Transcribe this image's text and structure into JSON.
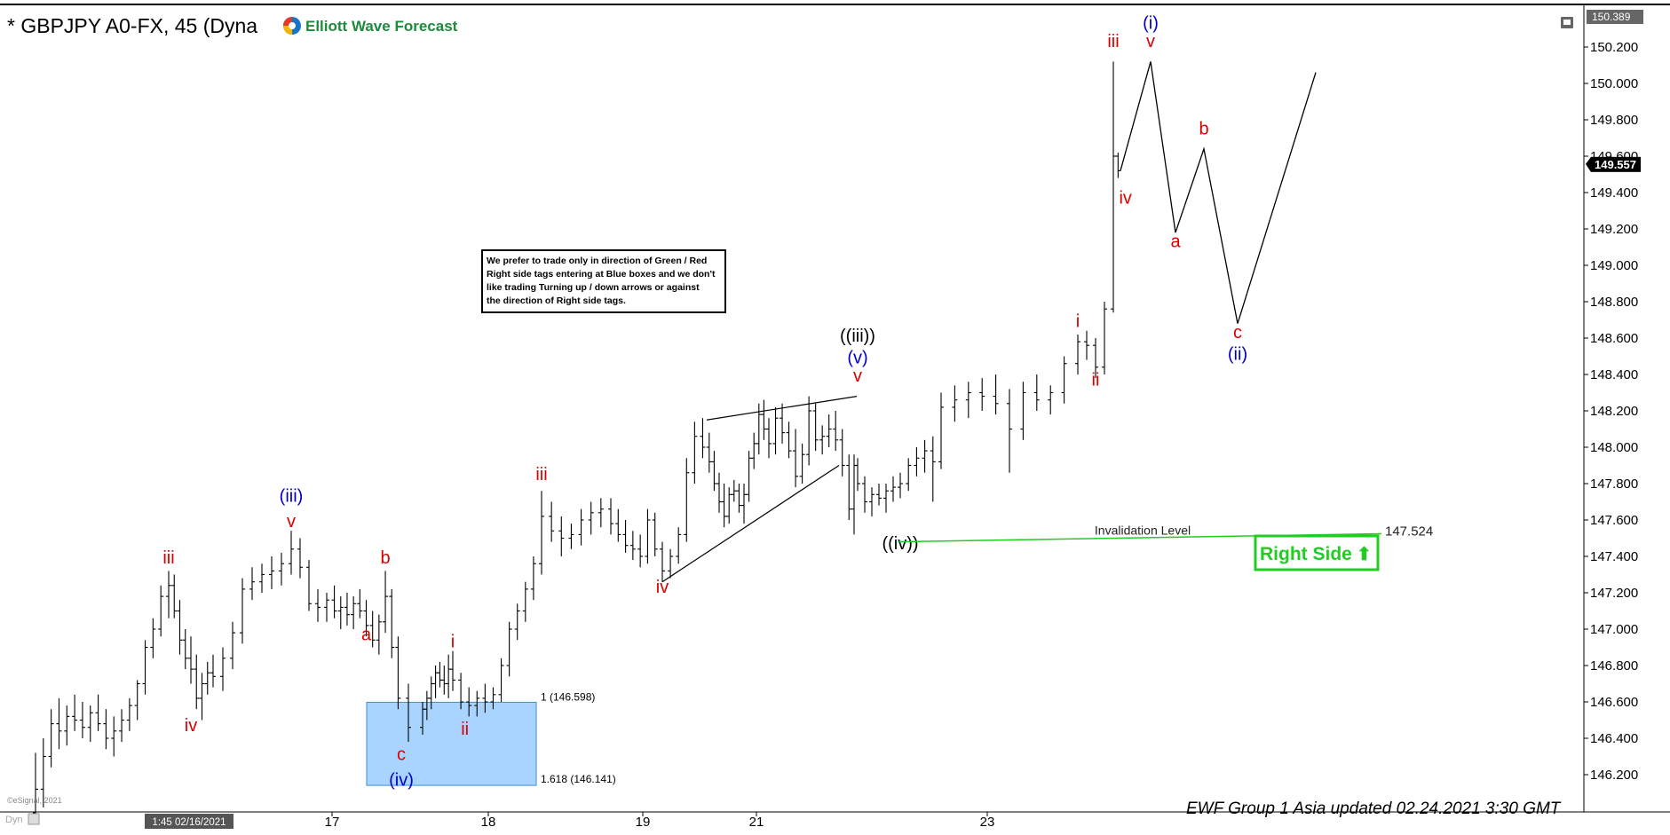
{
  "header": {
    "title": "* GBPJPY A0-FX, 45 (Dyna",
    "brand_name": "Elliott Wave Forecast"
  },
  "footer": {
    "updated": "EWF Group 1 Asia updated 02.24.2021 3:30 GMT",
    "copyright": "©eSignal, 2021",
    "cursor_time": "1:45 02/16/2021",
    "corner_label": "Dyn"
  },
  "note_box": {
    "lines": [
      "We prefer to trade only in direction of Green / Red",
      "Right side tags entering at Blue boxes and we don't",
      "like trading Turning up / down arrows or against",
      "the direction of Right side tags."
    ]
  },
  "right_side_tag": {
    "label": "Right Side",
    "arrow": "⬆",
    "color": "#22cc22"
  },
  "chart_data": {
    "type": "ohlc",
    "symbol": "GBPJPY",
    "timeframe": "45",
    "ylim": [
      146.0,
      150.4
    ],
    "y_ticks": [
      "146.200",
      "146.400",
      "146.600",
      "146.800",
      "147.000",
      "147.200",
      "147.400",
      "147.600",
      "147.800",
      "148.000",
      "148.200",
      "148.400",
      "148.600",
      "148.800",
      "149.000",
      "149.200",
      "149.400",
      "149.600",
      "149.800",
      "150.000",
      "150.200"
    ],
    "y_top_label": "150.389",
    "last_price": "149.557",
    "x_ticks": [
      "17",
      "18",
      "19",
      "21",
      "23"
    ],
    "colors": {
      "bars": "#000000",
      "blue_box": "#a8d4ff",
      "invalidation": "#22cc22",
      "red_label": "#dd0000",
      "blue_label": "#0000cc"
    },
    "blue_box": {
      "x_start": 17.4,
      "x_end": 18.2,
      "top": 146.598,
      "bottom": 146.141,
      "label_top": "1 (146.598)",
      "label_bottom": "1.618 (146.141)"
    },
    "invalidation": {
      "label": "Invalidation Level",
      "value": "147.524",
      "x_start": 21.8,
      "x_end": 25.0,
      "y": 147.5
    },
    "bars": [
      [
        16.0,
        145.99,
        146.32,
        145.94,
        146.12
      ],
      [
        16.04,
        146.12,
        146.4,
        146.02,
        146.3
      ],
      [
        16.08,
        146.3,
        146.56,
        146.24,
        146.48
      ],
      [
        16.12,
        146.48,
        146.62,
        146.34,
        146.44
      ],
      [
        16.16,
        146.44,
        146.58,
        146.36,
        146.52
      ],
      [
        16.2,
        146.52,
        146.64,
        146.44,
        146.5
      ],
      [
        16.24,
        146.5,
        146.6,
        146.4,
        146.46
      ],
      [
        16.28,
        146.46,
        146.58,
        146.38,
        146.54
      ],
      [
        16.32,
        146.54,
        146.64,
        146.44,
        146.48
      ],
      [
        16.36,
        146.48,
        146.56,
        146.34,
        146.4
      ],
      [
        16.4,
        146.4,
        146.52,
        146.3,
        146.44
      ],
      [
        16.44,
        146.44,
        146.56,
        146.38,
        146.5
      ],
      [
        16.48,
        146.5,
        146.62,
        146.44,
        146.58
      ],
      [
        16.52,
        146.58,
        146.72,
        146.5,
        146.7
      ],
      [
        16.56,
        146.7,
        146.94,
        146.64,
        146.9
      ],
      [
        16.6,
        146.9,
        147.06,
        146.84,
        147.0
      ],
      [
        16.64,
        147.0,
        147.24,
        146.96,
        147.18
      ],
      [
        16.68,
        147.18,
        147.32,
        147.06,
        147.24
      ],
      [
        16.72,
        147.24,
        147.3,
        147.06,
        147.1
      ],
      [
        16.76,
        147.1,
        147.16,
        146.86,
        146.94
      ],
      [
        16.8,
        146.94,
        147.0,
        146.78,
        146.84
      ],
      [
        16.84,
        146.84,
        146.96,
        146.7,
        146.78
      ],
      [
        16.88,
        146.78,
        146.86,
        146.56,
        146.62
      ],
      [
        16.92,
        146.62,
        146.76,
        146.5,
        146.7
      ],
      [
        16.96,
        146.7,
        146.82,
        146.64,
        146.76
      ],
      [
        17.0,
        146.76,
        146.86,
        146.68,
        146.74
      ],
      [
        17.04,
        146.74,
        146.9,
        146.66,
        146.84
      ],
      [
        17.08,
        146.84,
        147.04,
        146.78,
        146.98
      ],
      [
        17.12,
        146.98,
        147.28,
        146.92,
        147.22
      ],
      [
        17.16,
        147.22,
        147.34,
        147.16,
        147.26
      ],
      [
        17.2,
        147.26,
        147.36,
        147.2,
        147.3
      ],
      [
        17.24,
        147.3,
        147.4,
        147.22,
        147.32
      ],
      [
        17.28,
        147.32,
        147.42,
        147.24,
        147.36
      ],
      [
        17.32,
        147.36,
        147.54,
        147.3,
        147.44
      ],
      [
        17.36,
        147.44,
        147.5,
        147.28,
        147.34
      ],
      [
        17.4,
        147.34,
        147.38,
        147.1,
        147.14
      ],
      [
        17.44,
        147.14,
        147.22,
        147.04,
        147.12
      ],
      [
        17.48,
        147.12,
        147.2,
        147.04,
        147.16
      ],
      [
        17.52,
        147.16,
        147.24,
        147.06,
        147.1
      ],
      [
        17.56,
        147.1,
        147.18,
        147.0,
        147.12
      ],
      [
        17.6,
        147.12,
        147.2,
        147.02,
        147.08
      ],
      [
        17.64,
        147.08,
        147.18,
        147.0,
        147.14
      ],
      [
        17.68,
        147.14,
        147.22,
        147.06,
        147.1
      ],
      [
        17.72,
        147.1,
        147.16,
        146.96,
        147.02
      ],
      [
        17.76,
        147.02,
        147.1,
        146.9,
        146.94
      ],
      [
        17.8,
        146.94,
        147.08,
        146.86,
        147.04
      ],
      [
        17.84,
        147.04,
        147.32,
        146.98,
        147.18
      ],
      [
        17.88,
        147.18,
        147.22,
        146.84,
        146.9
      ],
      [
        17.92,
        146.9,
        146.96,
        146.56,
        146.62
      ],
      [
        17.96,
        146.62,
        146.7,
        146.38,
        146.46
      ],
      [
        18.0,
        146.46,
        146.6,
        146.42,
        146.56
      ],
      [
        18.04,
        146.56,
        146.66,
        146.5,
        146.62
      ],
      [
        18.08,
        146.62,
        146.74,
        146.56,
        146.7
      ],
      [
        18.12,
        146.7,
        146.8,
        146.62,
        146.76
      ],
      [
        18.16,
        146.76,
        146.82,
        146.68,
        146.72
      ],
      [
        18.2,
        146.72,
        146.8,
        146.64,
        146.7
      ],
      [
        18.24,
        146.7,
        146.86,
        146.62,
        146.78
      ],
      [
        18.28,
        146.78,
        146.88,
        146.66,
        146.72
      ],
      [
        18.32,
        146.72,
        146.76,
        146.56,
        146.6
      ],
      [
        18.36,
        146.6,
        146.68,
        146.52,
        146.58
      ],
      [
        18.4,
        146.58,
        146.66,
        146.52,
        146.62
      ],
      [
        18.44,
        146.62,
        146.7,
        146.54,
        146.6
      ],
      [
        18.48,
        146.6,
        146.68,
        146.56,
        146.64
      ],
      [
        18.52,
        146.64,
        146.84,
        146.6,
        146.8
      ],
      [
        18.56,
        146.8,
        147.04,
        146.74,
        147.0
      ],
      [
        18.6,
        147.0,
        147.14,
        146.94,
        147.1
      ],
      [
        18.64,
        147.1,
        147.26,
        147.04,
        147.22
      ],
      [
        18.68,
        147.22,
        147.4,
        147.16,
        147.36
      ],
      [
        18.72,
        147.36,
        147.76,
        147.3,
        147.62
      ],
      [
        18.76,
        147.62,
        147.7,
        147.48,
        147.54
      ],
      [
        18.8,
        147.54,
        147.62,
        147.4,
        147.5
      ],
      [
        18.84,
        147.5,
        147.58,
        147.44,
        147.52
      ],
      [
        18.88,
        147.52,
        147.66,
        147.46,
        147.6
      ],
      [
        18.92,
        147.6,
        147.7,
        147.52,
        147.64
      ],
      [
        18.96,
        147.64,
        147.72,
        147.56,
        147.66
      ],
      [
        19.0,
        147.66,
        147.72,
        147.52,
        147.58
      ],
      [
        19.04,
        147.58,
        147.66,
        147.48,
        147.52
      ],
      [
        19.08,
        147.52,
        147.6,
        147.42,
        147.46
      ],
      [
        19.12,
        147.46,
        147.54,
        147.38,
        147.44
      ],
      [
        19.16,
        147.44,
        147.52,
        147.34,
        147.4
      ],
      [
        19.2,
        147.4,
        147.66,
        147.36,
        147.6
      ],
      [
        19.24,
        147.6,
        147.64,
        147.4,
        147.44
      ],
      [
        19.28,
        147.44,
        147.48,
        147.26,
        147.32
      ],
      [
        19.32,
        147.32,
        147.44,
        147.28,
        147.4
      ],
      [
        19.36,
        147.4,
        147.56,
        147.36,
        147.52
      ],
      [
        19.4,
        147.52,
        147.94,
        147.48,
        147.86
      ],
      [
        19.44,
        147.86,
        148.14,
        147.8,
        148.06
      ],
      [
        19.48,
        148.06,
        148.16,
        147.94,
        148.0
      ],
      [
        19.52,
        148.0,
        148.08,
        147.86,
        147.92
      ],
      [
        19.56,
        147.92,
        147.98,
        147.76,
        147.8
      ],
      [
        19.6,
        147.8,
        147.86,
        147.64,
        147.7
      ],
      [
        19.64,
        147.7,
        147.8,
        147.56,
        147.62
      ],
      [
        19.68,
        147.62,
        147.78,
        147.58,
        147.74
      ],
      [
        19.72,
        147.74,
        147.82,
        147.7,
        147.76
      ],
      [
        19.76,
        147.76,
        147.8,
        147.64,
        147.68
      ],
      [
        19.8,
        147.68,
        147.8,
        147.58,
        147.74
      ],
      [
        19.84,
        147.74,
        147.98,
        147.7,
        147.94
      ],
      [
        19.88,
        147.94,
        148.08,
        147.88,
        148.02
      ],
      [
        19.92,
        148.02,
        148.24,
        147.96,
        148.18
      ],
      [
        19.96,
        148.18,
        148.26,
        148.04,
        148.1
      ],
      [
        20.0,
        148.1,
        148.16,
        147.94,
        148.02
      ],
      [
        20.04,
        148.02,
        148.22,
        147.96,
        148.16
      ],
      [
        20.08,
        148.16,
        148.24,
        148.02,
        148.08
      ],
      [
        20.12,
        148.08,
        148.14,
        147.94,
        147.98
      ],
      [
        20.16,
        147.98,
        148.1,
        147.78,
        147.84
      ],
      [
        20.2,
        147.84,
        148.02,
        147.8,
        147.96
      ],
      [
        20.24,
        147.96,
        148.28,
        147.9,
        148.2
      ],
      [
        20.28,
        148.2,
        148.24,
        147.98,
        148.04
      ],
      [
        20.32,
        148.04,
        148.12,
        147.96,
        148.06
      ],
      [
        20.36,
        148.06,
        148.18,
        148.0,
        148.1
      ],
      [
        20.4,
        148.1,
        148.2,
        147.98,
        148.04
      ],
      [
        20.44,
        148.04,
        148.1,
        147.84,
        147.9
      ],
      [
        20.48,
        147.9,
        147.96,
        147.6,
        147.66
      ],
      [
        20.52,
        147.66,
        147.96,
        147.52,
        147.9
      ],
      [
        20.56,
        147.9,
        147.94,
        147.76,
        147.8
      ],
      [
        20.6,
        147.8,
        147.84,
        147.64,
        147.7
      ],
      [
        20.64,
        147.7,
        147.78,
        147.62,
        147.74
      ],
      [
        20.68,
        147.74,
        147.8,
        147.68,
        147.72
      ],
      [
        20.72,
        147.72,
        147.8,
        147.64,
        147.76
      ],
      [
        20.76,
        147.76,
        147.84,
        147.7,
        147.78
      ],
      [
        20.8,
        147.78,
        147.86,
        147.72,
        147.8
      ],
      [
        20.84,
        147.8,
        147.94,
        147.76,
        147.9
      ],
      [
        20.88,
        147.9,
        148.0,
        147.84,
        147.94
      ],
      [
        20.92,
        147.94,
        148.04,
        147.86,
        147.98
      ],
      [
        20.96,
        147.98,
        148.06,
        147.7,
        147.92
      ],
      [
        21.0,
        147.92,
        148.3,
        147.88,
        148.22
      ],
      [
        21.04,
        148.22,
        148.34,
        148.14,
        148.26
      ],
      [
        21.08,
        148.26,
        148.36,
        148.16,
        148.3
      ],
      [
        21.12,
        148.3,
        148.38,
        148.2,
        148.28
      ],
      [
        21.16,
        148.28,
        148.4,
        148.18,
        148.24
      ],
      [
        21.2,
        148.24,
        148.32,
        147.86,
        148.1
      ],
      [
        21.24,
        148.1,
        148.36,
        148.04,
        148.3
      ],
      [
        21.28,
        148.3,
        148.4,
        148.2,
        148.26
      ],
      [
        21.32,
        148.26,
        148.34,
        148.18,
        148.3
      ],
      [
        21.36,
        148.3,
        148.5,
        148.24,
        148.46
      ],
      [
        21.4,
        148.46,
        148.62,
        148.4,
        148.58
      ],
      [
        21.44,
        148.58,
        148.64,
        148.48,
        148.56
      ],
      [
        21.48,
        148.56,
        148.6,
        148.38,
        148.44
      ],
      [
        21.52,
        148.44,
        148.8,
        148.4,
        148.76
      ],
      [
        21.56,
        148.76,
        150.12,
        148.74,
        149.6
      ],
      [
        21.6,
        149.6,
        149.62,
        149.48,
        149.52
      ]
    ],
    "projection": [
      [
        21.62,
        149.52
      ],
      [
        21.86,
        150.12
      ],
      [
        22.14,
        149.18
      ],
      [
        22.45,
        149.64
      ],
      [
        22.82,
        148.68
      ],
      [
        23.74,
        150.06
      ]
    ],
    "channel_lines": [
      {
        "from": [
          19.5,
          148.15
        ],
        "to": [
          20.55,
          148.28
        ]
      },
      {
        "from": [
          19.28,
          147.26
        ],
        "to": [
          20.42,
          147.9
        ]
      }
    ],
    "labels": [
      {
        "text": "iii",
        "x": 16.68,
        "y": 147.36,
        "color": "red"
      },
      {
        "text": "iv",
        "x": 16.84,
        "y": 146.44,
        "color": "red"
      },
      {
        "text": "v",
        "x": 17.32,
        "y": 147.56,
        "color": "red"
      },
      {
        "text": "(iii)",
        "x": 17.32,
        "y": 147.7,
        "color": "blue"
      },
      {
        "text": "a",
        "x": 17.72,
        "y": 146.94,
        "color": "red"
      },
      {
        "text": "b",
        "x": 17.84,
        "y": 147.36,
        "color": "red"
      },
      {
        "text": "c",
        "x": 17.94,
        "y": 146.28,
        "color": "red"
      },
      {
        "text": "(iv)",
        "x": 17.94,
        "y": 146.14,
        "color": "blue"
      },
      {
        "text": "i",
        "x": 18.28,
        "y": 146.9,
        "color": "red"
      },
      {
        "text": "ii",
        "x": 18.34,
        "y": 146.42,
        "color": "red"
      },
      {
        "text": "iii",
        "x": 18.72,
        "y": 147.82,
        "color": "red"
      },
      {
        "text": "iv",
        "x": 19.28,
        "y": 147.2,
        "color": "red"
      },
      {
        "text": "v",
        "x": 20.56,
        "y": 148.36,
        "color": "red"
      },
      {
        "text": "(v)",
        "x": 20.56,
        "y": 148.46,
        "color": "blue"
      },
      {
        "text": "((iii))",
        "x": 20.56,
        "y": 148.58,
        "color": "black"
      },
      {
        "text": "((iv))",
        "x": 20.8,
        "y": 147.44,
        "color": "black"
      },
      {
        "text": "i",
        "x": 21.4,
        "y": 148.66,
        "color": "red"
      },
      {
        "text": "ii",
        "x": 21.48,
        "y": 148.34,
        "color": "red"
      },
      {
        "text": "iii",
        "x": 21.56,
        "y": 150.2,
        "color": "red"
      },
      {
        "text": "iv",
        "x": 21.66,
        "y": 149.34,
        "color": "red"
      },
      {
        "text": "v",
        "x": 21.86,
        "y": 150.2,
        "color": "red"
      },
      {
        "text": "(i)",
        "x": 21.86,
        "y": 150.3,
        "color": "blue"
      },
      {
        "text": "a",
        "x": 22.14,
        "y": 149.1,
        "color": "red"
      },
      {
        "text": "b",
        "x": 22.45,
        "y": 149.72,
        "color": "red"
      },
      {
        "text": "c",
        "x": 22.82,
        "y": 148.6,
        "color": "red"
      },
      {
        "text": "(ii)",
        "x": 22.82,
        "y": 148.48,
        "color": "blue"
      }
    ]
  }
}
